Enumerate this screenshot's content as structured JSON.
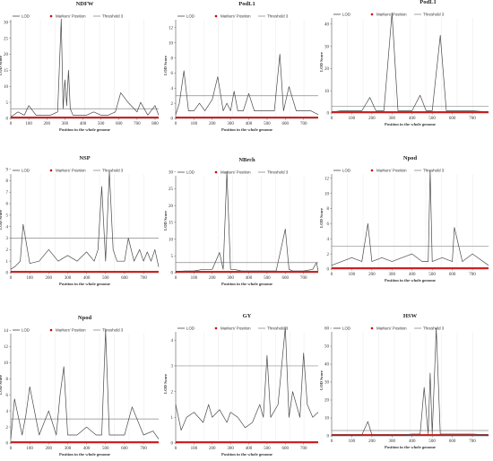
{
  "legend": {
    "lod": "LOD",
    "markers": "Markers' Position",
    "threshold": "Threshold 3"
  },
  "colors": {
    "lod": "#4a4a4a",
    "threshold": "#8a8a8a",
    "markers": "#cc0000",
    "baseline": "#cc0000"
  },
  "chart_data": [
    {
      "type": "line",
      "title": "NDFW",
      "xlabel": "Position in the whole genome",
      "ylabel": "LOD Score",
      "xlim": [
        0,
        820
      ],
      "ylim": [
        0,
        33
      ],
      "xticks": [
        0,
        100,
        200,
        300,
        400,
        500,
        600,
        700,
        800
      ],
      "yticks": [
        0,
        5,
        10,
        15,
        20,
        25,
        30
      ],
      "threshold": 3,
      "series": [
        {
          "name": "LOD",
          "x": [
            0,
            15,
            40,
            75,
            100,
            140,
            180,
            220,
            260,
            280,
            290,
            300,
            310,
            320,
            330,
            345,
            380,
            420,
            460,
            500,
            540,
            580,
            610,
            650,
            700,
            720,
            760,
            800,
            820
          ],
          "y": [
            0.5,
            1,
            2,
            1,
            4,
            1,
            1,
            1,
            2,
            31,
            3,
            12,
            4,
            15,
            3,
            1,
            1,
            1,
            2,
            1,
            1,
            2,
            8,
            5,
            2,
            5,
            1,
            4,
            1
          ]
        }
      ]
    },
    {
      "type": "line",
      "title": "PodL1",
      "xlabel": "Position in the whole genome",
      "ylabel": "LOD Score",
      "xlim": [
        0,
        780
      ],
      "ylim": [
        0,
        14
      ],
      "xticks": [
        0,
        100,
        200,
        300,
        400,
        500,
        600,
        700
      ],
      "yticks": [
        0,
        2,
        4,
        6,
        8,
        10,
        12
      ],
      "threshold": 3,
      "series": [
        {
          "name": "LOD",
          "x": [
            0,
            20,
            45,
            70,
            100,
            130,
            160,
            200,
            230,
            260,
            280,
            300,
            320,
            340,
            370,
            400,
            430,
            460,
            500,
            540,
            570,
            590,
            620,
            660,
            700,
            740,
            780
          ],
          "y": [
            0.5,
            2,
            6.3,
            1,
            1,
            2,
            1,
            2.5,
            5.5,
            1,
            2,
            1,
            3.6,
            1,
            1,
            3.3,
            1,
            1,
            1,
            1,
            8.5,
            1,
            4.2,
            1,
            1,
            1,
            0.5
          ]
        }
      ]
    },
    {
      "type": "line",
      "title": "PodL1",
      "xlabel": "Position in the whole genome",
      "ylabel": "LOD Score",
      "xlim": [
        0,
        780
      ],
      "ylim": [
        0,
        46
      ],
      "xticks": [
        0,
        100,
        200,
        300,
        400,
        500,
        600,
        700
      ],
      "yticks": [
        0,
        10,
        20,
        30,
        40
      ],
      "threshold": 3,
      "series": [
        {
          "name": "LOD",
          "x": [
            0,
            50,
            100,
            150,
            190,
            220,
            260,
            300,
            330,
            360,
            400,
            440,
            470,
            500,
            540,
            570,
            600,
            650,
            700,
            780
          ],
          "y": [
            0.5,
            1,
            1,
            1,
            7,
            1,
            1,
            45,
            1,
            1,
            1,
            8,
            1,
            1,
            35,
            1,
            1,
            1,
            1,
            0.5
          ]
        }
      ]
    },
    {
      "type": "line",
      "title": "NSP",
      "xlabel": "Position in the whole genome",
      "ylabel": "LOD Score",
      "xlim": [
        0,
        780
      ],
      "ylim": [
        0,
        9.2
      ],
      "xticks": [
        0,
        100,
        200,
        300,
        400,
        500,
        600,
        700
      ],
      "yticks": [
        0,
        1,
        2,
        3,
        4,
        5,
        6,
        7,
        8,
        9
      ],
      "threshold": 3,
      "series": [
        {
          "name": "LOD",
          "x": [
            0,
            20,
            50,
            65,
            100,
            150,
            200,
            250,
            300,
            350,
            400,
            440,
            460,
            480,
            500,
            520,
            540,
            560,
            600,
            620,
            650,
            680,
            700,
            720,
            740,
            760,
            780
          ],
          "y": [
            0.3,
            0.5,
            1,
            4.2,
            0.8,
            1,
            2,
            1,
            1.5,
            1,
            1.8,
            1,
            2,
            7.5,
            1,
            8.8,
            2,
            1,
            1,
            3,
            1,
            2,
            1,
            1.8,
            1,
            2,
            0.5
          ]
        }
      ]
    },
    {
      "type": "line",
      "title": "NBrch",
      "xlabel": "Position in the whole genome",
      "ylabel": "LOD Score",
      "xlim": [
        0,
        780
      ],
      "ylim": [
        0,
        31
      ],
      "xticks": [
        0,
        100,
        200,
        300,
        400,
        500,
        600,
        700
      ],
      "yticks": [
        0,
        5,
        10,
        15,
        20,
        25,
        30
      ],
      "threshold": 3,
      "series": [
        {
          "name": "LOD",
          "x": [
            0,
            50,
            100,
            150,
            200,
            240,
            260,
            280,
            300,
            320,
            360,
            400,
            450,
            500,
            550,
            600,
            620,
            640,
            700,
            750,
            770,
            780
          ],
          "y": [
            0.3,
            0.5,
            0.5,
            1,
            1,
            6,
            1,
            30,
            1,
            1,
            0.5,
            0.5,
            0.5,
            0.5,
            0.5,
            13,
            1,
            0.5,
            0.5,
            1,
            3,
            0.5
          ]
        }
      ]
    },
    {
      "type": "line",
      "title": "Npod",
      "xlabel": "Position in the whole genome",
      "ylabel": "LOD Score",
      "xlim": [
        0,
        780
      ],
      "ylim": [
        0,
        13.5
      ],
      "xticks": [
        0,
        100,
        200,
        300,
        400,
        500,
        600,
        700
      ],
      "yticks": [
        0,
        2,
        4,
        6,
        8,
        10,
        12
      ],
      "threshold": 3,
      "series": [
        {
          "name": "LOD",
          "x": [
            0,
            50,
            100,
            150,
            180,
            200,
            250,
            300,
            350,
            400,
            450,
            480,
            490,
            500,
            550,
            600,
            610,
            650,
            700,
            780
          ],
          "y": [
            0.5,
            1,
            1.5,
            1,
            6,
            1,
            1.5,
            1,
            1.5,
            2,
            1,
            1,
            13,
            1,
            1.5,
            1,
            5.5,
            1,
            2,
            0.5
          ]
        }
      ]
    },
    {
      "type": "line",
      "title": "Npod",
      "xlabel": "Position in the whole genome",
      "ylabel": "LOD Score",
      "xlim": [
        0,
        780
      ],
      "ylim": [
        0,
        14.5
      ],
      "xticks": [
        0,
        100,
        200,
        300,
        400,
        500,
        600,
        700
      ],
      "yticks": [
        0,
        2,
        4,
        6,
        8,
        10,
        12,
        14
      ],
      "threshold": 3,
      "series": [
        {
          "name": "LOD",
          "x": [
            0,
            20,
            60,
            80,
            100,
            150,
            200,
            240,
            260,
            280,
            300,
            350,
            400,
            450,
            480,
            500,
            520,
            560,
            600,
            640,
            700,
            750,
            780
          ],
          "y": [
            0.5,
            5.5,
            1,
            3.5,
            7,
            1,
            4,
            1,
            6,
            9.5,
            1,
            1,
            2,
            1,
            1,
            14,
            1,
            1,
            1,
            4.5,
            1,
            1.5,
            0.5
          ]
        }
      ]
    },
    {
      "type": "line",
      "title": "GY",
      "xlabel": "Position in the whole genome",
      "ylabel": "LOD Score",
      "xlim": [
        0,
        780
      ],
      "ylim": [
        0,
        4.6
      ],
      "xticks": [
        0,
        100,
        200,
        300,
        400,
        500,
        600,
        700
      ],
      "yticks": [
        0,
        1,
        2,
        3,
        4
      ],
      "threshold": 3,
      "series": [
        {
          "name": "LOD",
          "x": [
            0,
            30,
            60,
            100,
            150,
            180,
            200,
            240,
            280,
            300,
            340,
            380,
            420,
            460,
            480,
            500,
            520,
            560,
            600,
            620,
            640,
            680,
            700,
            720,
            750,
            780
          ],
          "y": [
            1.5,
            0.5,
            1,
            1.2,
            0.8,
            1.5,
            1,
            1.3,
            0.8,
            1.2,
            1,
            0.6,
            0.8,
            1.5,
            1,
            3.4,
            1,
            1.5,
            4.5,
            1,
            2,
            1,
            3.5,
            1.5,
            1,
            1.2
          ]
        }
      ]
    },
    {
      "type": "line",
      "title": "HSW",
      "xlabel": "Position in the whole genome",
      "ylabel": "LOD Score",
      "xlim": [
        0,
        780
      ],
      "ylim": [
        0,
        62
      ],
      "xticks": [
        0,
        100,
        200,
        300,
        400,
        500,
        600,
        700
      ],
      "yticks": [
        0,
        10,
        20,
        30,
        40,
        50,
        60
      ],
      "threshold": 3,
      "series": [
        {
          "name": "LOD",
          "x": [
            0,
            50,
            100,
            150,
            180,
            200,
            250,
            300,
            350,
            400,
            440,
            460,
            480,
            490,
            500,
            520,
            540,
            600,
            650,
            700,
            780
          ],
          "y": [
            0.5,
            0.5,
            0.5,
            0.5,
            8,
            0.5,
            0.5,
            0.5,
            0.5,
            1,
            1,
            27,
            1,
            35,
            1,
            60,
            1,
            1,
            1,
            1,
            0.5
          ]
        }
      ]
    }
  ]
}
